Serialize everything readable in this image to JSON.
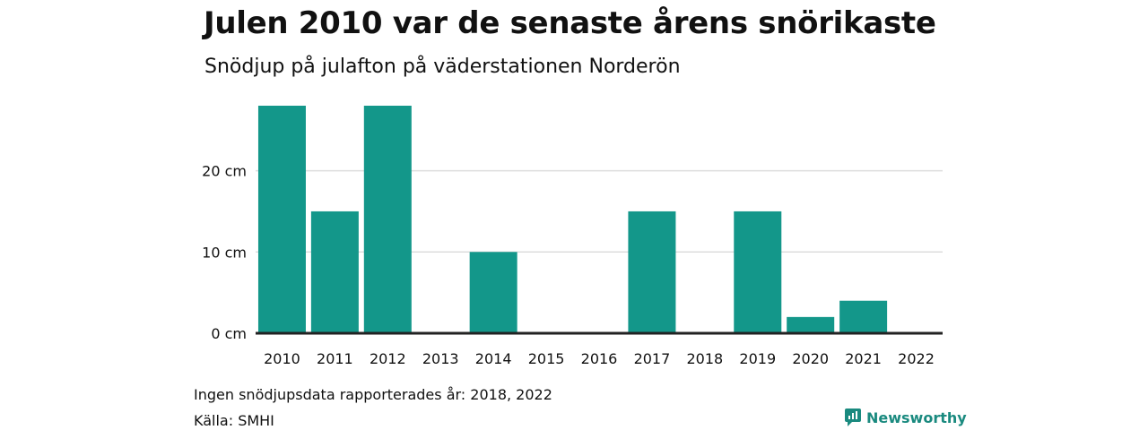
{
  "title": "Julen 2010 var de senaste årens snörikaste",
  "subtitle": "Snödjup på julafton på väderstationen Norderön",
  "note": "Ingen snödjupsdata rapporterades år: 2018, 2022",
  "source": "Källa: SMHI",
  "brand": "Newsworthy",
  "chart_data": {
    "type": "bar",
    "categories": [
      "2010",
      "2011",
      "2012",
      "2013",
      "2014",
      "2015",
      "2016",
      "2017",
      "2018",
      "2019",
      "2020",
      "2021",
      "2022"
    ],
    "values": [
      28,
      15,
      28,
      0,
      10,
      0,
      0,
      15,
      null,
      15,
      2,
      4,
      null
    ],
    "yticks": [
      0,
      10,
      20
    ],
    "ytick_labels": [
      "0 cm",
      "10 cm",
      "20 cm"
    ],
    "ylim": [
      0,
      28
    ],
    "grid": true,
    "bar_color": "#13978a"
  }
}
